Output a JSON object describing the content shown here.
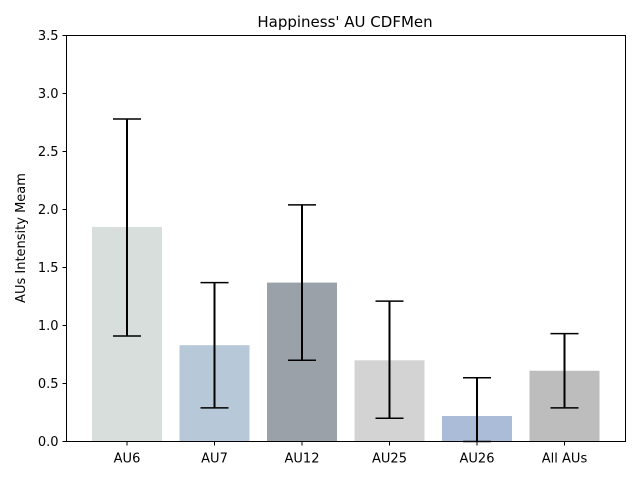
{
  "chart_data": {
    "type": "bar",
    "title": "Happiness' AU CDFMen",
    "xlabel": "",
    "ylabel": "AUs Intensity Meam",
    "categories": [
      "AU6",
      "AU7",
      "AU12",
      "AU25",
      "AU26",
      "All AUs"
    ],
    "values": [
      1.85,
      0.83,
      1.37,
      0.7,
      0.22,
      0.61
    ],
    "error_low": [
      0.91,
      0.29,
      0.7,
      0.2,
      0.0,
      0.29
    ],
    "error_high": [
      2.78,
      1.37,
      2.04,
      1.21,
      0.55,
      0.93
    ],
    "ylim": [
      0,
      3.5
    ],
    "yticks": [
      "0.0",
      "0.5",
      "1.0",
      "1.5",
      "2.0",
      "2.5",
      "3.0",
      "3.5"
    ],
    "grid": false,
    "colors": [
      "#d7dedb",
      "#b7c8d8",
      "#9aa1a8",
      "#d3d3d3",
      "#abbcd8",
      "#bdbdbd"
    ]
  }
}
